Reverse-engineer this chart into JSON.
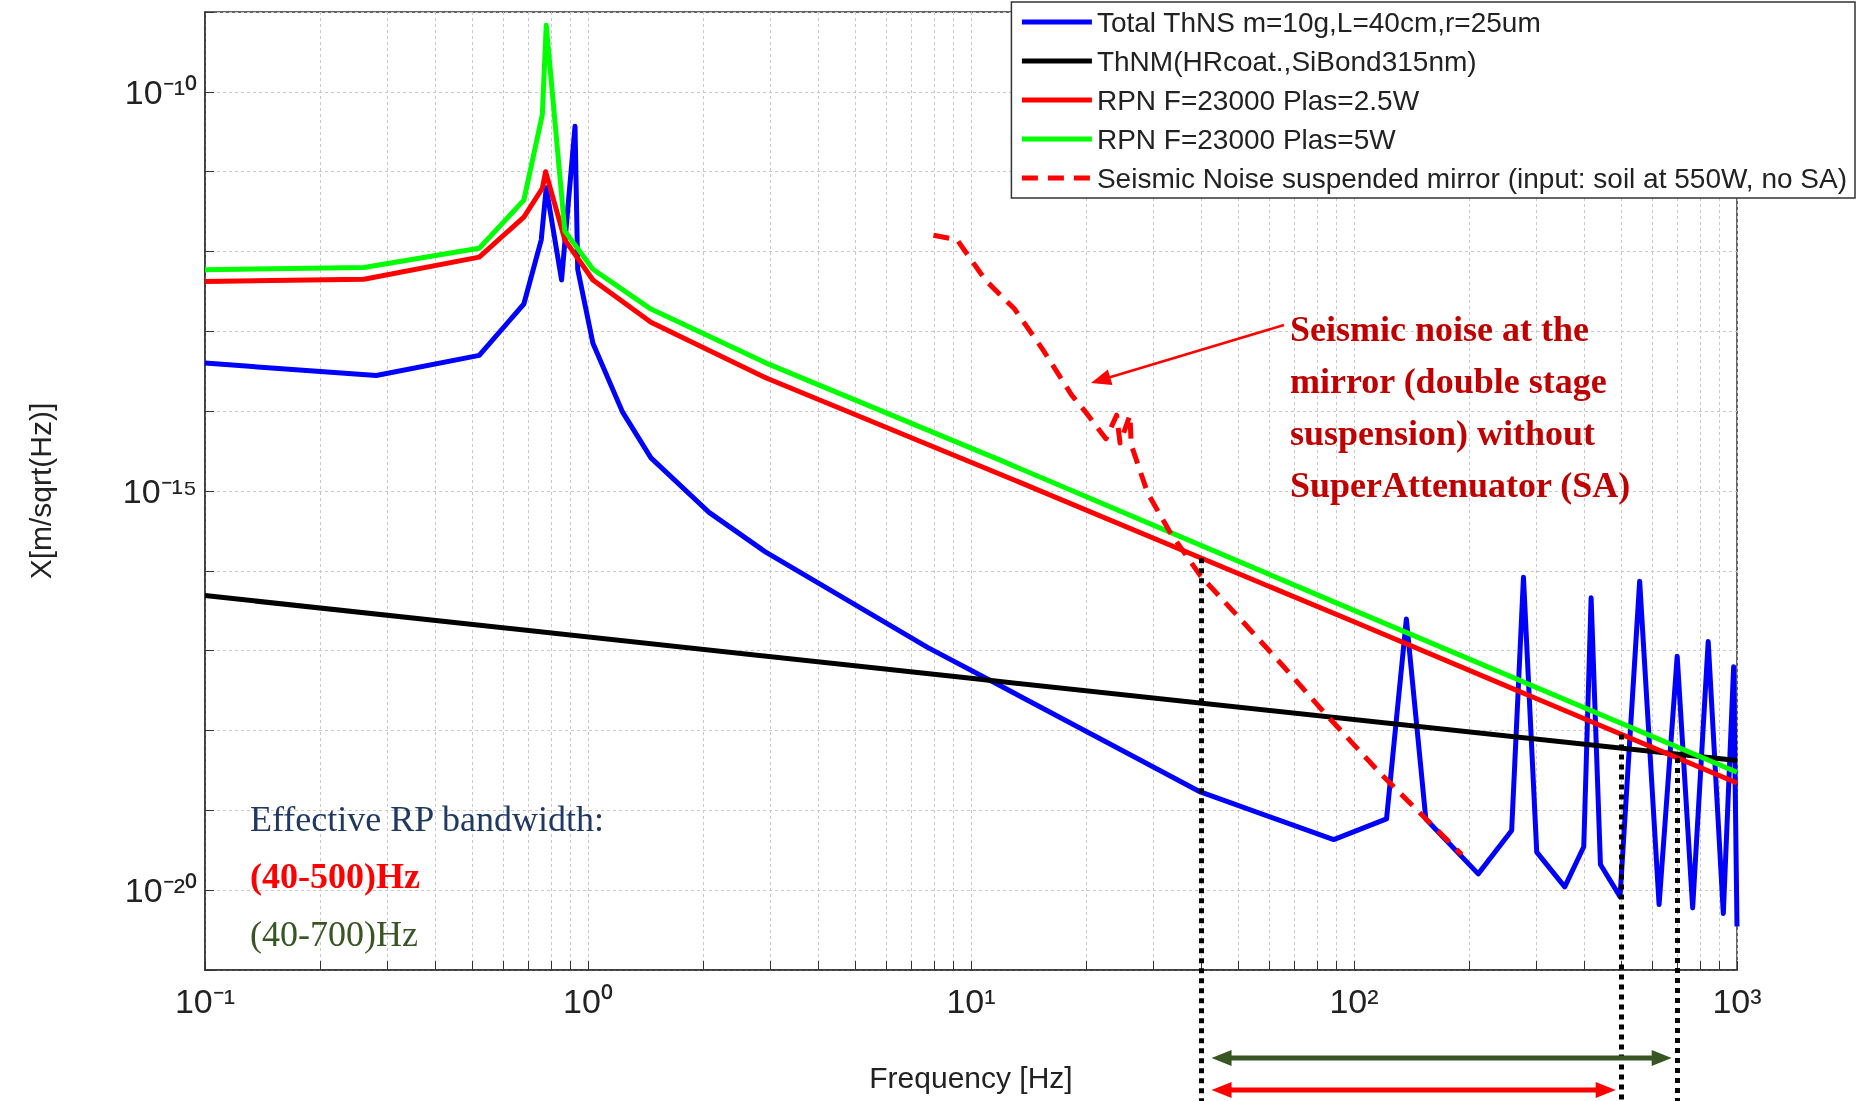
{
  "chart_data": {
    "type": "line",
    "xlabel": "Frequency [Hz]",
    "ylabel": "X[m/sqrt(Hz)]",
    "log": "xy",
    "grid": true,
    "legend": "top right",
    "marker": "none",
    "line_style": "solid",
    "xlim": [
      0.1,
      1000
    ],
    "ylim": [
      1e-21,
      1e-09
    ],
    "xticks": [
      {
        "value": 0.1,
        "label": "10⁻¹"
      },
      {
        "value": 0.2,
        "label": null
      },
      {
        "value": 0.3,
        "label": null
      },
      {
        "value": 0.4,
        "label": null
      },
      {
        "value": 0.5,
        "label": null
      },
      {
        "value": 0.6,
        "label": null
      },
      {
        "value": 0.7,
        "label": null
      },
      {
        "value": 0.8,
        "label": null
      },
      {
        "value": 0.9,
        "label": null
      },
      {
        "value": 1,
        "label": "10⁰"
      },
      {
        "value": 2,
        "label": null
      },
      {
        "value": 3,
        "label": null
      },
      {
        "value": 4,
        "label": null
      },
      {
        "value": 5,
        "label": null
      },
      {
        "value": 6,
        "label": null
      },
      {
        "value": 7,
        "label": null
      },
      {
        "value": 8,
        "label": null
      },
      {
        "value": 9,
        "label": null
      },
      {
        "value": 10,
        "label": "10¹"
      },
      {
        "value": 20,
        "label": null
      },
      {
        "value": 30,
        "label": null
      },
      {
        "value": 40,
        "label": null
      },
      {
        "value": 50,
        "label": null
      },
      {
        "value": 60,
        "label": null
      },
      {
        "value": 70,
        "label": null
      },
      {
        "value": 80,
        "label": null
      },
      {
        "value": 90,
        "label": null
      },
      {
        "value": 100,
        "label": "10²"
      },
      {
        "value": 200,
        "label": null
      },
      {
        "value": 300,
        "label": null
      },
      {
        "value": 400,
        "label": null
      },
      {
        "value": 500,
        "label": null
      },
      {
        "value": 600,
        "label": null
      },
      {
        "value": 700,
        "label": null
      },
      {
        "value": 800,
        "label": null
      },
      {
        "value": 900,
        "label": null
      },
      {
        "value": 1000,
        "label": "10³"
      }
    ],
    "yticks": [
      {
        "value": 1e-21,
        "label": null
      },
      {
        "value": 1e-20,
        "label": "10⁻²⁰"
      },
      {
        "value": 1e-19,
        "label": null
      },
      {
        "value": 1e-18,
        "label": null
      },
      {
        "value": 1e-17,
        "label": null
      },
      {
        "value": 1e-16,
        "label": null
      },
      {
        "value": 1e-15,
        "label": "10⁻¹⁵"
      },
      {
        "value": 1e-14,
        "label": null
      },
      {
        "value": 1e-13,
        "label": null
      },
      {
        "value": 1e-12,
        "label": null
      },
      {
        "value": 1e-11,
        "label": null
      },
      {
        "value": 1e-10,
        "label": "10⁻¹⁰"
      },
      {
        "value": 1e-09,
        "label": null
      }
    ],
    "series": [
      {
        "name": "Total ThNS m=10g,L=40cm,r=25um",
        "color": "#0000ff",
        "x": [
          0.1,
          0.28,
          0.52,
          0.68,
          0.755,
          0.778,
          0.853,
          0.925,
          0.94,
          1.03,
          1.23,
          1.46,
          2.07,
          2.92,
          7.7,
          12.1,
          39.7,
          88.5,
          121.6,
          137,
          154,
          211,
          258,
          277,
          300,
          355,
          398,
          416,
          440,
          495,
          557,
          626,
          698,
          766,
          841,
          921,
          980,
          1000
        ],
        "values": [
          4e-14,
          2.8e-14,
          5e-14,
          2.2e-13,
          1.4e-12,
          6.3e-12,
          4.4e-13,
          3.7e-11,
          6e-13,
          7.1e-14,
          9.8e-15,
          2.6e-15,
          5.4e-16,
          1.7e-16,
          1.1e-17,
          3.5e-18,
          1.7e-19,
          4.3e-20,
          7.8e-20,
          2.5e-17,
          7.8e-20,
          1.6e-20,
          5.6e-20,
          8.3e-17,
          3e-20,
          1.1e-20,
          3.5e-20,
          4.6e-17,
          2.1e-20,
          8.3e-21,
          7.4e-17,
          6.6e-21,
          8.5e-18,
          6e-21,
          1.3e-17,
          5.1e-21,
          6.3e-18,
          3.5e-21
        ]
      },
      {
        "name": "ThNM(HRcoat.,SiBond315nm)",
        "color": "#000000",
        "x": [
          0.1,
          10,
          1000
        ],
        "values": [
          4.9e-17,
          4.5e-18,
          4.2e-19
        ]
      },
      {
        "name": "RPN F=23000 Plas=2.5W",
        "color": "#ff0000",
        "x": [
          0.1,
          0.26,
          0.52,
          0.68,
          0.76,
          0.775,
          0.87,
          1.03,
          1.46,
          2.92,
          12,
          100,
          1000
        ],
        "values": [
          4.2e-13,
          4.5e-13,
          8.5e-13,
          2.7e-12,
          6.2e-12,
          1e-11,
          1.4e-12,
          4.4e-13,
          1.3e-13,
          2.6e-14,
          1.6e-15,
          2.3e-17,
          2.2e-19
        ]
      },
      {
        "name": "RPN F=23000 Plas=5W",
        "color": "#00ff00",
        "x": [
          0.1,
          0.26,
          0.52,
          0.68,
          0.76,
          0.778,
          0.87,
          1.03,
          1.46,
          2.92,
          12,
          100,
          1000
        ],
        "values": [
          5.9e-13,
          6.3e-13,
          1.1e-12,
          4.4e-12,
          5.2e-11,
          6.8e-10,
          1.8e-12,
          6e-13,
          1.9e-13,
          4e-14,
          2.4e-15,
          3.2e-17,
          3e-19
        ]
      },
      {
        "name": "Seismic Noise suspended mirror (input: soil at 550W, no SA)",
        "color": "#ff0000",
        "line_style": "dashed",
        "x": [
          7.98,
          9.2,
          10.9,
          13.0,
          15.4,
          18.3,
          20,
          22.5,
          24,
          24.5,
          26,
          26.2,
          28.9,
          33,
          39.7,
          49.4,
          64.6,
          84.4,
          118,
          191
        ],
        "values": [
          1.6e-12,
          1.4e-12,
          4.4e-13,
          1.9e-13,
          5.9e-14,
          1.6e-14,
          9.5e-15,
          4.5e-15,
          8.9e-15,
          4e-15,
          8.9e-15,
          3.8e-15,
          9.5e-16,
          3.1e-16,
          8.7e-17,
          2.8e-17,
          6.8e-18,
          1.6e-18,
          2.8e-19,
          2.8e-20
        ]
      }
    ],
    "ref_lines": [
      {
        "axis": "x",
        "value": 40,
        "color": "#000000",
        "line_style": "dotted"
      },
      {
        "axis": "x",
        "value": 500,
        "color": "#000000",
        "line_style": "dotted"
      },
      {
        "axis": "x",
        "value": 700,
        "color": "#000000",
        "line_style": "dotted"
      }
    ],
    "annotations": [
      "Seismic noise at the mirror (double stage suspension) without SuperAttenuator (SA)",
      "Effective RP bandwidth:",
      "(40-500)Hz",
      "(40-700)Hz"
    ]
  }
}
